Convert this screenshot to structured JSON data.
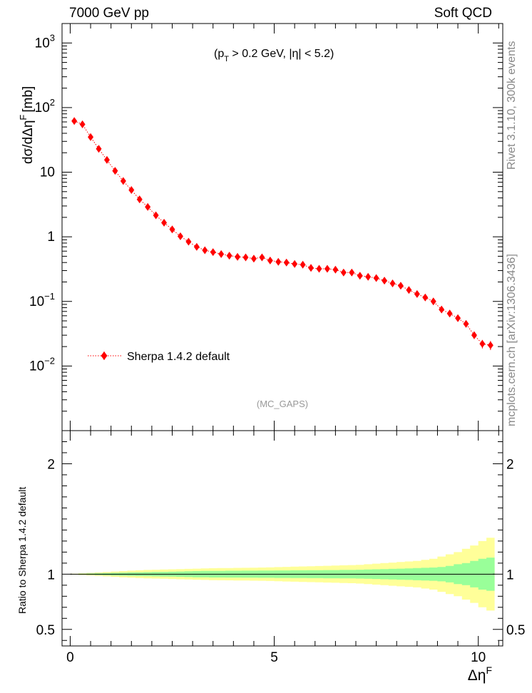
{
  "header": {
    "left": "7000 GeV pp",
    "right": "Soft QCD"
  },
  "side_labels": {
    "upper": "Rivet 3.1.10, 300k events",
    "lower": "mcplots.cern.ch [arXiv:1306.3436]"
  },
  "main_plot": {
    "ylabel": "dσ/dΔη",
    "ylabel_sup": "F",
    "ylabel_unit": "[mb]",
    "cut_label": "(p",
    "cut_sub": "T",
    "cut_rest": " > 0.2 GeV, |η| < 5.2)",
    "analysis": "(MC_GAPS)"
  },
  "ratio_plot": {
    "ylabel": "Ratio to Sherpa 1.4.2 default"
  },
  "xaxis": {
    "label": "Δη",
    "label_sup": "F"
  },
  "chart_data": [
    {
      "type": "scatter",
      "title": "",
      "xlabel": "ΔηF",
      "ylabel": "dσ/dΔηF [mb]",
      "log_y": true,
      "xlim": [
        -0.2,
        10.6
      ],
      "ylim": [
        0.001,
        2000
      ],
      "x_ticks": [
        0,
        5,
        10
      ],
      "y_ticks": [
        {
          "value": 1000,
          "base": "10",
          "exp": "3"
        },
        {
          "value": 100,
          "base": "10",
          "exp": "2"
        },
        {
          "value": 10,
          "base": "10",
          "exp": ""
        },
        {
          "value": 1,
          "base": "1",
          "exp": ""
        },
        {
          "value": 0.1,
          "base": "10",
          "exp": "−1"
        },
        {
          "value": 0.01,
          "base": "10",
          "exp": "−2"
        }
      ],
      "legend_position": "bottom-left",
      "series": [
        {
          "name": "Sherpa 1.4.2 default",
          "color": "#ff0000",
          "points": [
            [
              0.1,
              62
            ],
            [
              0.3,
              55
            ],
            [
              0.5,
              35
            ],
            [
              0.7,
              23
            ],
            [
              0.9,
              15.5
            ],
            [
              1.1,
              10.5
            ],
            [
              1.3,
              7.3
            ],
            [
              1.5,
              5.3
            ],
            [
              1.7,
              3.8
            ],
            [
              1.9,
              2.9
            ],
            [
              2.1,
              2.15
            ],
            [
              2.3,
              1.65
            ],
            [
              2.5,
              1.3
            ],
            [
              2.7,
              1.02
            ],
            [
              2.9,
              0.84
            ],
            [
              3.1,
              0.7
            ],
            [
              3.3,
              0.62
            ],
            [
              3.5,
              0.58
            ],
            [
              3.7,
              0.54
            ],
            [
              3.9,
              0.51
            ],
            [
              4.1,
              0.49
            ],
            [
              4.3,
              0.48
            ],
            [
              4.5,
              0.46
            ],
            [
              4.7,
              0.48
            ],
            [
              4.9,
              0.43
            ],
            [
              5.1,
              0.41
            ],
            [
              5.3,
              0.4
            ],
            [
              5.5,
              0.38
            ],
            [
              5.7,
              0.37
            ],
            [
              5.9,
              0.33
            ],
            [
              6.1,
              0.32
            ],
            [
              6.3,
              0.32
            ],
            [
              6.5,
              0.31
            ],
            [
              6.7,
              0.28
            ],
            [
              6.9,
              0.28
            ],
            [
              7.1,
              0.25
            ],
            [
              7.3,
              0.24
            ],
            [
              7.5,
              0.23
            ],
            [
              7.7,
              0.21
            ],
            [
              7.9,
              0.19
            ],
            [
              8.1,
              0.175
            ],
            [
              8.3,
              0.15
            ],
            [
              8.5,
              0.13
            ],
            [
              8.7,
              0.115
            ],
            [
              8.9,
              0.1
            ],
            [
              9.1,
              0.075
            ],
            [
              9.3,
              0.065
            ],
            [
              9.5,
              0.055
            ],
            [
              9.7,
              0.045
            ],
            [
              9.9,
              0.03
            ],
            [
              10.1,
              0.022
            ],
            [
              10.3,
              0.021
            ]
          ],
          "rel_err": [
            0.02,
            0.02,
            0.02,
            0.02,
            0.02,
            0.02,
            0.02,
            0.02,
            0.02,
            0.02,
            0.03,
            0.03,
            0.03,
            0.03,
            0.03,
            0.04,
            0.04,
            0.04,
            0.04,
            0.04,
            0.04,
            0.05,
            0.05,
            0.05,
            0.05,
            0.05,
            0.05,
            0.05,
            0.05,
            0.06,
            0.06,
            0.06,
            0.06,
            0.06,
            0.06,
            0.07,
            0.07,
            0.07,
            0.07,
            0.07,
            0.08,
            0.08,
            0.08,
            0.09,
            0.09,
            0.1,
            0.1,
            0.11,
            0.12,
            0.13,
            0.15,
            0.16
          ]
        }
      ]
    },
    {
      "type": "area",
      "title": "",
      "xlabel": "ΔηF",
      "ylabel": "Ratio to Sherpa 1.4.2 default",
      "xlim": [
        -0.2,
        10.6
      ],
      "ylim": [
        0.35,
        2.3
      ],
      "x_ticks": [
        0,
        5,
        10
      ],
      "y_ticks": [
        0.5,
        1,
        2
      ],
      "reference_line": 1,
      "bin_edges": [
        0.0,
        0.2,
        0.4,
        0.6,
        0.8,
        1.0,
        1.2,
        1.4,
        1.6,
        1.8,
        2.0,
        2.2,
        2.4,
        2.6,
        2.8,
        3.0,
        3.2,
        3.4,
        3.6,
        3.8,
        4.0,
        4.2,
        4.4,
        4.6,
        4.8,
        5.0,
        5.2,
        5.4,
        5.6,
        5.8,
        6.0,
        6.2,
        6.4,
        6.6,
        6.8,
        7.0,
        7.2,
        7.4,
        7.6,
        7.8,
        8.0,
        8.2,
        8.4,
        8.6,
        8.8,
        9.0,
        9.2,
        9.4,
        9.6,
        9.8,
        10.0,
        10.2,
        10.4
      ],
      "inner_band_halfwidth": [
        0.002,
        0.004,
        0.006,
        0.008,
        0.01,
        0.012,
        0.014,
        0.016,
        0.017,
        0.018,
        0.02,
        0.021,
        0.022,
        0.024,
        0.026,
        0.028,
        0.029,
        0.03,
        0.03,
        0.031,
        0.031,
        0.032,
        0.032,
        0.033,
        0.033,
        0.034,
        0.034,
        0.035,
        0.035,
        0.036,
        0.036,
        0.037,
        0.037,
        0.038,
        0.038,
        0.04,
        0.042,
        0.044,
        0.046,
        0.048,
        0.05,
        0.052,
        0.055,
        0.058,
        0.06,
        0.065,
        0.075,
        0.09,
        0.1,
        0.12,
        0.14,
        0.15
      ],
      "outer_band_halfwidth": [
        0.004,
        0.008,
        0.012,
        0.016,
        0.02,
        0.024,
        0.028,
        0.032,
        0.035,
        0.038,
        0.04,
        0.042,
        0.044,
        0.046,
        0.048,
        0.05,
        0.052,
        0.054,
        0.055,
        0.056,
        0.057,
        0.058,
        0.059,
        0.06,
        0.062,
        0.064,
        0.066,
        0.068,
        0.07,
        0.072,
        0.074,
        0.076,
        0.078,
        0.08,
        0.082,
        0.085,
        0.09,
        0.095,
        0.1,
        0.105,
        0.11,
        0.115,
        0.12,
        0.13,
        0.14,
        0.16,
        0.18,
        0.2,
        0.23,
        0.26,
        0.3,
        0.33
      ],
      "colors": {
        "inner": "#99ff99",
        "outer": "#ffff99"
      }
    }
  ]
}
